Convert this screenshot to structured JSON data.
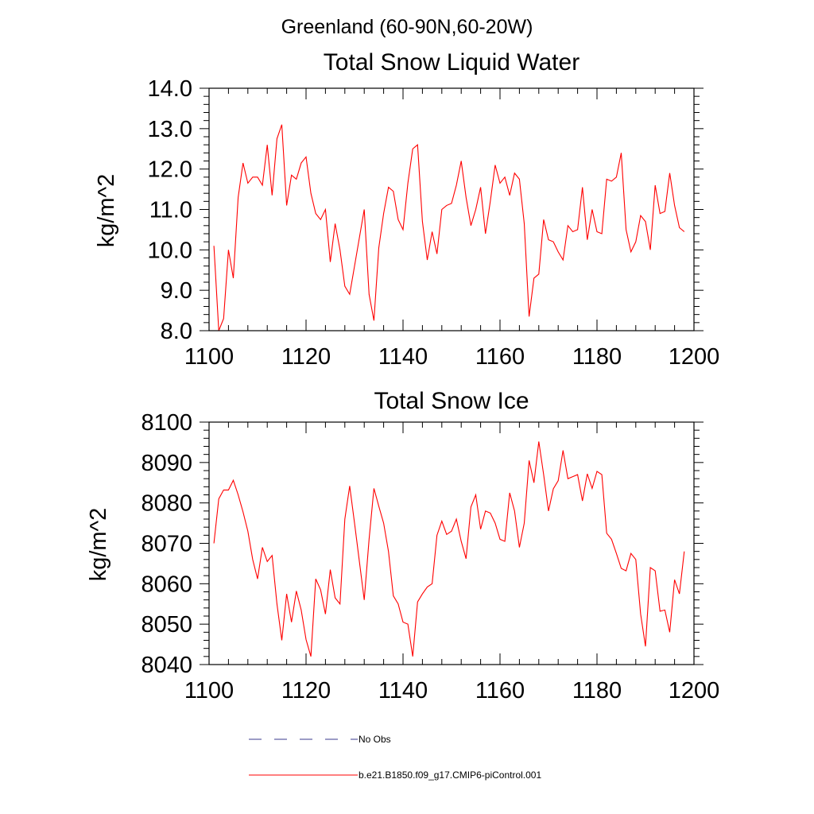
{
  "figure_title": "Greenland (60-90N,60-20W)",
  "chart_data": [
    {
      "type": "line",
      "title": "Total Snow Liquid Water",
      "xlabel": "",
      "ylabel": "kg/m^2",
      "xlim": [
        1100,
        1200
      ],
      "ylim": [
        8.0,
        14.0
      ],
      "xticks": [
        1100,
        1120,
        1140,
        1160,
        1180,
        1200
      ],
      "yticks": [
        8.0,
        9.0,
        10.0,
        11.0,
        12.0,
        13.0,
        14.0
      ],
      "ytick_labels": [
        "8.0",
        "9.0",
        "10.0",
        "11.0",
        "12.0",
        "13.0",
        "14.0"
      ],
      "series": [
        {
          "name": "b.e21.B1850.f09_g17.CMIP6-piControl.001",
          "color": "#ff0000",
          "x_start": 1101,
          "x_step": 1,
          "values": [
            10.1,
            8.0,
            8.3,
            10.0,
            9.3,
            11.3,
            12.15,
            11.65,
            11.8,
            11.8,
            11.6,
            12.6,
            11.35,
            12.75,
            13.1,
            11.1,
            11.85,
            11.75,
            12.15,
            12.3,
            11.4,
            10.9,
            10.75,
            11.0,
            9.7,
            10.65,
            10.0,
            9.1,
            8.9,
            9.6,
            10.3,
            11.0,
            8.9,
            8.25,
            10.05,
            10.9,
            11.55,
            11.45,
            10.75,
            10.5,
            11.65,
            12.5,
            12.6,
            10.7,
            9.75,
            10.45,
            9.9,
            11.0,
            11.1,
            11.15,
            11.6,
            12.2,
            11.3,
            10.6,
            11.0,
            11.55,
            10.4,
            11.2,
            12.1,
            11.65,
            11.8,
            11.35,
            11.9,
            11.75,
            10.65,
            8.35,
            9.3,
            9.4,
            10.75,
            10.25,
            10.2,
            9.95,
            9.75,
            10.6,
            10.45,
            10.5,
            11.55,
            10.25,
            11.0,
            10.45,
            10.4,
            11.75,
            11.7,
            11.8,
            12.4,
            10.5,
            9.95,
            10.2,
            10.85,
            10.7,
            10.0,
            11.6,
            10.9,
            10.95,
            11.9,
            11.1,
            10.55,
            10.45
          ]
        }
      ]
    },
    {
      "type": "line",
      "title": "Total Snow Ice",
      "xlabel": "",
      "ylabel": "kg/m^2",
      "xlim": [
        1100,
        1200
      ],
      "ylim": [
        8040,
        8100
      ],
      "xticks": [
        1100,
        1120,
        1140,
        1160,
        1180,
        1200
      ],
      "yticks": [
        8040,
        8050,
        8060,
        8070,
        8080,
        8090,
        8100
      ],
      "ytick_labels": [
        "8040",
        "8050",
        "8060",
        "8070",
        "8080",
        "8090",
        "8100"
      ],
      "series": [
        {
          "name": "b.e21.B1850.f09_g17.CMIP6-piControl.001",
          "color": "#ff0000",
          "x_start": 1101,
          "x_step": 1,
          "values": [
            8070.0,
            8081.0,
            8083.2,
            8083.2,
            8085.6,
            8082.0,
            8077.8,
            8073.0,
            8066.0,
            8061.2,
            8069.0,
            8065.5,
            8067.0,
            8055.0,
            8046.0,
            8057.5,
            8050.5,
            8058.2,
            8053.5,
            8046.2,
            8042.0,
            8061.2,
            8058.5,
            8052.5,
            8063.5,
            8056.5,
            8055.0,
            8076.0,
            8084.2,
            8075.0,
            8065.5,
            8056.0,
            8071.0,
            8083.6,
            8079.2,
            8075.0,
            8068.0,
            8057.0,
            8055.0,
            8050.5,
            8050.0,
            8042.0,
            8055.5,
            8057.5,
            8059.2,
            8060.0,
            8072.0,
            8075.5,
            8072.2,
            8073.0,
            8076.0,
            8070.5,
            8066.2,
            8079.0,
            8082.0,
            8073.5,
            8078.0,
            8077.5,
            8075.0,
            8071.0,
            8070.5,
            8082.5,
            8078.0,
            8069.0,
            8075.0,
            8090.5,
            8085.0,
            8095.2,
            8087.0,
            8078.0,
            8083.5,
            8085.5,
            8093.0,
            8086.0,
            8086.5,
            8087.0,
            8080.5,
            8087.2,
            8083.6,
            8087.8,
            8087.0,
            8072.5,
            8071.0,
            8067.5,
            8063.8,
            8063.2,
            8067.5,
            8066.0,
            8052.5,
            8044.5,
            8064.0,
            8063.2,
            8053.2,
            8053.5,
            8048.0,
            8061.0,
            8057.5,
            8068.0
          ]
        }
      ]
    }
  ],
  "legend": {
    "items": [
      {
        "label": "No Obs",
        "style": "dashed",
        "color": "#3a3a8c"
      },
      {
        "label": "b.e21.B1850.f09_g17.CMIP6-piControl.001",
        "style": "solid",
        "color": "#ff0000"
      }
    ]
  }
}
